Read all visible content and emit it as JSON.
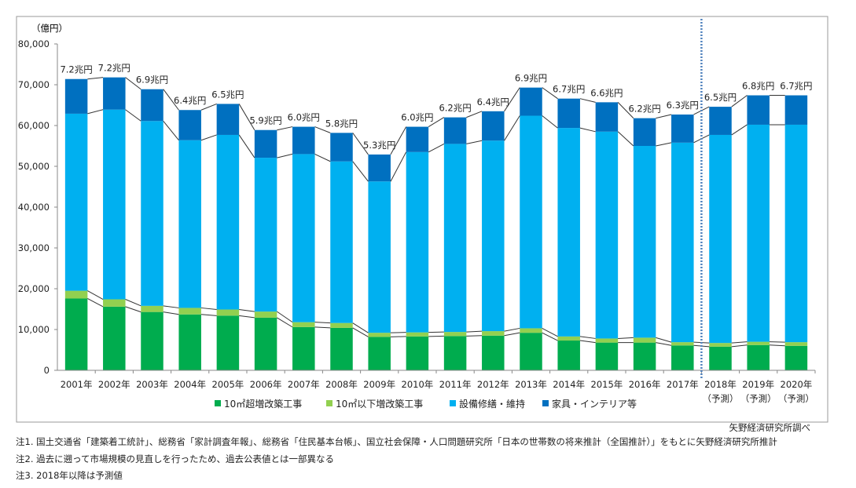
{
  "chart_data": {
    "type": "bar",
    "stacked": true,
    "ylabel": "（億円）",
    "ylim": [
      0,
      80000
    ],
    "yticks": [
      "0",
      "10,000",
      "20,000",
      "30,000",
      "40,000",
      "50,000",
      "60,000",
      "70,000",
      "80,000"
    ],
    "grid": false,
    "legend_position": "bottom",
    "categories": [
      "2001年",
      "2002年",
      "2003年",
      "2004年",
      "2005年",
      "2006年",
      "2007年",
      "2008年",
      "2009年",
      "2010年",
      "2011年",
      "2012年",
      "2013年",
      "2014年",
      "2015年",
      "2016年",
      "2017年",
      "2018年",
      "2019年",
      "2020年"
    ],
    "category_sublabels": [
      "",
      "",
      "",
      "",
      "",
      "",
      "",
      "",
      "",
      "",
      "",
      "",
      "",
      "",
      "",
      "",
      "",
      "（予測）",
      "（予測）",
      "（予測）"
    ],
    "series": [
      {
        "name": "10㎡超増改築工事",
        "color": "#00ac4e",
        "values": [
          17600,
          15600,
          14300,
          13700,
          13400,
          12900,
          10600,
          10400,
          8200,
          8300,
          8400,
          8500,
          9200,
          7300,
          6800,
          6800,
          6100,
          5800,
          6200,
          6000
        ]
      },
      {
        "name": "10㎡以下増改築工事",
        "color": "#92d050",
        "values": [
          1900,
          1800,
          1500,
          1600,
          1500,
          1500,
          1200,
          1200,
          1000,
          1000,
          1000,
          1100,
          1100,
          1000,
          1000,
          1200,
          800,
          900,
          800,
          900
        ]
      },
      {
        "name": "設備修繕・維持",
        "color": "#00b0f0",
        "values": [
          43400,
          46500,
          45300,
          41100,
          42800,
          37700,
          41200,
          39600,
          37100,
          44200,
          46100,
          46700,
          52100,
          51100,
          50700,
          47000,
          48900,
          51000,
          53200,
          53300
        ]
      },
      {
        "name": "家具・インテリア等",
        "color": "#0070c0",
        "values": [
          8500,
          7900,
          7800,
          7400,
          7600,
          6800,
          6700,
          7000,
          6600,
          6200,
          6500,
          7200,
          6900,
          7200,
          7200,
          6800,
          6900,
          6900,
          7200,
          7200
        ]
      }
    ],
    "total_labels": [
      "7.2兆円",
      "7.2兆円",
      "6.9兆円",
      "6.4兆円",
      "6.5兆円",
      "5.9兆円",
      "6.0兆円",
      "5.8兆円",
      "5.3兆円",
      "6.0兆円",
      "6.2兆円",
      "6.4兆円",
      "6.9兆円",
      "6.7兆円",
      "6.6兆円",
      "6.2兆円",
      "6.3兆円",
      "6.5兆円",
      "6.8兆円",
      "6.7兆円"
    ],
    "forecast_divider_after": "2017年",
    "divider_color": "#4f81bd"
  },
  "source": "矢野経済研究所調べ",
  "notes": [
    "注1. 国土交通省「建築着工統計」、総務省「家計調査年報」、総務省「住民基本台帳」、国立社会保障・人口問題研究所「日本の世帯数の将来推計（全国推計）」をもとに矢野経済研究所推計",
    "注2. 過去に遡って市場規模の見直しを行ったため、過去公表値とは一部異なる",
    "注3. 2018年以降は予測値"
  ]
}
